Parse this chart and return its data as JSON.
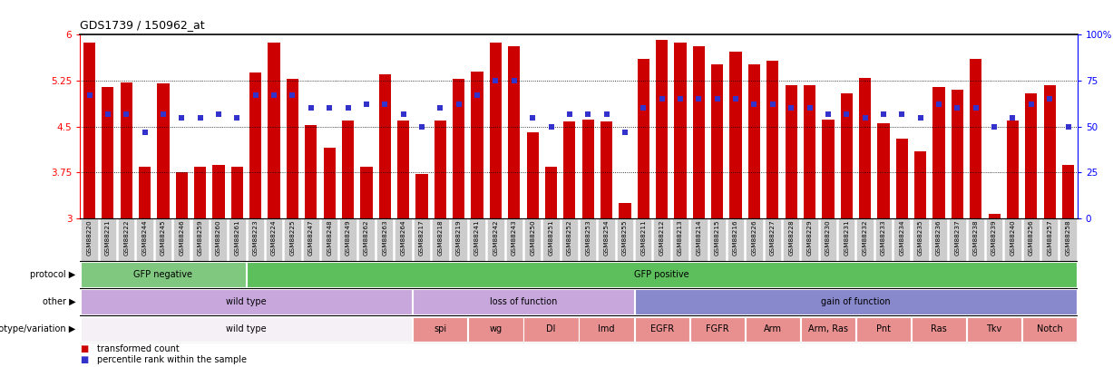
{
  "title": "GDS1739 / 150962_at",
  "samples": [
    "GSM88220",
    "GSM88221",
    "GSM88222",
    "GSM88244",
    "GSM88245",
    "GSM88246",
    "GSM88259",
    "GSM88260",
    "GSM88261",
    "GSM88223",
    "GSM88224",
    "GSM88225",
    "GSM88247",
    "GSM88248",
    "GSM88249",
    "GSM88262",
    "GSM88263",
    "GSM88264",
    "GSM88217",
    "GSM88218",
    "GSM88219",
    "GSM88241",
    "GSM88242",
    "GSM88243",
    "GSM88250",
    "GSM88251",
    "GSM88252",
    "GSM88253",
    "GSM88254",
    "GSM88255",
    "GSM88211",
    "GSM88212",
    "GSM88213",
    "GSM88214",
    "GSM88215",
    "GSM88216",
    "GSM88226",
    "GSM88227",
    "GSM88228",
    "GSM88229",
    "GSM88230",
    "GSM88231",
    "GSM88232",
    "GSM88233",
    "GSM88234",
    "GSM88235",
    "GSM88236",
    "GSM88237",
    "GSM88238",
    "GSM88239",
    "GSM88240",
    "GSM88256",
    "GSM88257",
    "GSM88258"
  ],
  "bar_values": [
    5.88,
    5.15,
    5.22,
    3.85,
    5.2,
    3.75,
    3.85,
    3.88,
    3.84,
    5.38,
    5.87,
    5.28,
    4.52,
    4.15,
    4.6,
    3.85,
    5.35,
    4.6,
    3.73,
    4.6,
    5.28,
    5.4,
    5.88,
    5.82,
    4.4,
    3.85,
    4.58,
    4.62,
    4.58,
    3.25,
    5.6,
    5.92,
    5.88,
    5.82,
    5.52,
    5.72,
    5.52,
    5.58,
    5.18,
    5.18,
    4.62,
    5.05,
    5.3,
    4.55,
    4.3,
    4.1,
    5.15,
    5.1,
    5.6,
    3.08,
    4.6,
    5.05,
    5.18,
    3.88
  ],
  "dot_values_pct": [
    67,
    57,
    57,
    47,
    57,
    55,
    55,
    57,
    55,
    67,
    67,
    67,
    60,
    60,
    60,
    62,
    62,
    57,
    50,
    60,
    62,
    67,
    75,
    75,
    55,
    50,
    57,
    57,
    57,
    47,
    60,
    65,
    65,
    65,
    65,
    65,
    62,
    62,
    60,
    60,
    57,
    57,
    55,
    57,
    57,
    55,
    62,
    60,
    60,
    50,
    55,
    62,
    65,
    50
  ],
  "bar_color": "#CC0000",
  "dot_color": "#3333CC",
  "protocol_groups": [
    {
      "label": "GFP negative",
      "start": 0,
      "end": 8,
      "color": "#80C880"
    },
    {
      "label": "GFP positive",
      "start": 9,
      "end": 53,
      "color": "#5CBF5C"
    }
  ],
  "other_groups": [
    {
      "label": "wild type",
      "start": 0,
      "end": 17,
      "color": "#C8A8DC"
    },
    {
      "label": "loss of function",
      "start": 18,
      "end": 29,
      "color": "#C8A8DC"
    },
    {
      "label": "gain of function",
      "start": 30,
      "end": 53,
      "color": "#8888CC"
    }
  ],
  "genotype_groups": [
    {
      "label": "wild type",
      "start": 0,
      "end": 17,
      "color": "#F5F0F5"
    },
    {
      "label": "spi",
      "start": 18,
      "end": 20,
      "color": "#E89090"
    },
    {
      "label": "wg",
      "start": 21,
      "end": 23,
      "color": "#E89090"
    },
    {
      "label": "Dl",
      "start": 24,
      "end": 26,
      "color": "#E89090"
    },
    {
      "label": "Imd",
      "start": 27,
      "end": 29,
      "color": "#E89090"
    },
    {
      "label": "EGFR",
      "start": 30,
      "end": 32,
      "color": "#E89090"
    },
    {
      "label": "FGFR",
      "start": 33,
      "end": 35,
      "color": "#E89090"
    },
    {
      "label": "Arm",
      "start": 36,
      "end": 38,
      "color": "#E89090"
    },
    {
      "label": "Arm, Ras",
      "start": 39,
      "end": 41,
      "color": "#E89090"
    },
    {
      "label": "Pnt",
      "start": 42,
      "end": 44,
      "color": "#E89090"
    },
    {
      "label": "Ras",
      "start": 45,
      "end": 47,
      "color": "#E89090"
    },
    {
      "label": "Tkv",
      "start": 48,
      "end": 50,
      "color": "#E89090"
    },
    {
      "label": "Notch",
      "start": 51,
      "end": 53,
      "color": "#E89090"
    }
  ]
}
